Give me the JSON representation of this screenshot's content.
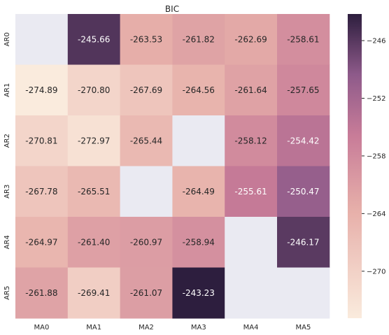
{
  "chart_data": {
    "type": "heatmap",
    "title": "BIC",
    "xlabel": "",
    "ylabel": "",
    "x_categories": [
      "MA0",
      "MA1",
      "MA2",
      "MA3",
      "MA4",
      "MA5"
    ],
    "y_categories": [
      "AR0",
      "AR1",
      "AR2",
      "AR3",
      "AR4",
      "AR5"
    ],
    "values": [
      [
        null,
        -245.66,
        -263.53,
        -261.82,
        -262.69,
        -258.61
      ],
      [
        -274.89,
        -270.8,
        -267.69,
        -264.56,
        -261.64,
        -257.65
      ],
      [
        -270.81,
        -272.97,
        -265.44,
        null,
        -258.12,
        -254.42
      ],
      [
        -267.78,
        -265.51,
        null,
        -264.49,
        -255.61,
        -250.47
      ],
      [
        -264.97,
        -261.4,
        -260.97,
        -258.94,
        null,
        -246.17
      ],
      [
        -261.88,
        -269.41,
        -261.07,
        -243.23,
        null,
        null
      ]
    ],
    "value_labels": [
      [
        "",
        "-245.66",
        "-263.53",
        "-261.82",
        "-262.69",
        "-258.61"
      ],
      [
        "-274.89",
        "-270.80",
        "-267.69",
        "-264.56",
        "-261.64",
        "-257.65"
      ],
      [
        "-270.81",
        "-272.97",
        "-265.44",
        "",
        "-258.12",
        "-254.42"
      ],
      [
        "-267.78",
        "-265.51",
        "",
        "-264.49",
        "-255.61",
        "-250.47"
      ],
      [
        "-264.97",
        "-261.40",
        "-260.97",
        "-258.94",
        "",
        "-246.17"
      ],
      [
        "-261.88",
        "-269.41",
        "-261.07",
        "-243.23",
        "",
        ""
      ]
    ],
    "colorbar": {
      "vmin": -274.89,
      "vmax": -243.23,
      "ticks": [
        -246,
        -252,
        -258,
        -264,
        -270
      ],
      "tick_labels": [
        "−246",
        "−252",
        "−258",
        "−264",
        "−270"
      ]
    },
    "colors": {
      "background": "#eaeaf2",
      "low": "#faebdd",
      "mid_low": "#e7b0aa",
      "mid": "#c87c98",
      "mid_high": "#8e5a8a",
      "high": "#2d1e3e"
    },
    "grid": false,
    "legend": "colorbar-right"
  }
}
